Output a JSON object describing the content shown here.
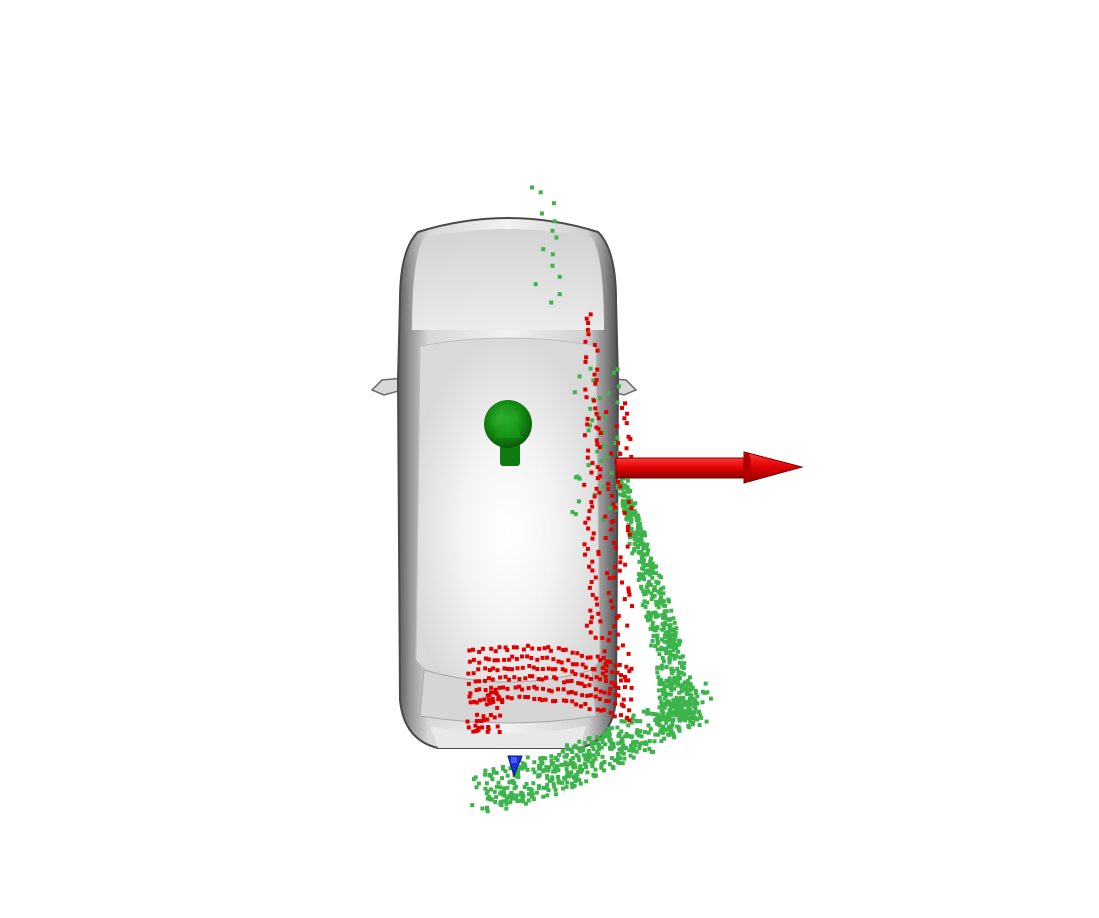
{
  "scene": {
    "background": "#ffffff",
    "colors": {
      "car_body": "#e6e6e6",
      "car_shadow": "#7a7a7a",
      "point_green": "#3cb44b",
      "point_red": "#e00000",
      "arrow_red": "#e00000",
      "arrow_green": "#1a8a1a",
      "marker_blue": "#1f2fd6"
    },
    "objects": [
      "car-mesh",
      "green-point-cloud",
      "red-point-cloud",
      "red-axis-arrow",
      "green-axis-arrow",
      "blue-origin-marker"
    ]
  }
}
